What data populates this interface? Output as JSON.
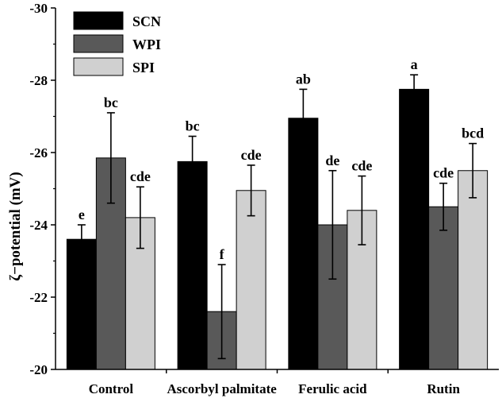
{
  "chart_data": {
    "type": "bar",
    "title": "",
    "xlabel": "",
    "ylabel": "ζ−potential (mV)",
    "ylim": [
      -20,
      -30
    ],
    "yticks": [
      -20,
      -22,
      -24,
      -26,
      -28,
      -30
    ],
    "y_axis_reversed": true,
    "legend_position": "top-left",
    "grid": false,
    "categories": [
      "Control",
      "Ascorbyl palmitate",
      "Ferulic acid",
      "Rutin"
    ],
    "series": [
      {
        "name": "SCN",
        "color": "#000000",
        "values": [
          -23.6,
          -25.75,
          -26.95,
          -27.75
        ],
        "errors": [
          0.4,
          0.7,
          0.8,
          0.4
        ],
        "labels": [
          "e",
          "bc",
          "ab",
          "a"
        ]
      },
      {
        "name": "WPI",
        "color": "#595959",
        "values": [
          -25.85,
          -21.6,
          -24.0,
          -24.5
        ],
        "errors": [
          1.25,
          1.3,
          1.5,
          0.65
        ],
        "labels": [
          "bc",
          "f",
          "de",
          "cde"
        ]
      },
      {
        "name": "SPI",
        "color": "#d0d0d0",
        "values": [
          -24.2,
          -24.95,
          -24.4,
          -25.5
        ],
        "errors": [
          0.85,
          0.7,
          0.95,
          0.75
        ],
        "labels": [
          "cde",
          "cde",
          "cde",
          "bcd"
        ]
      }
    ]
  }
}
